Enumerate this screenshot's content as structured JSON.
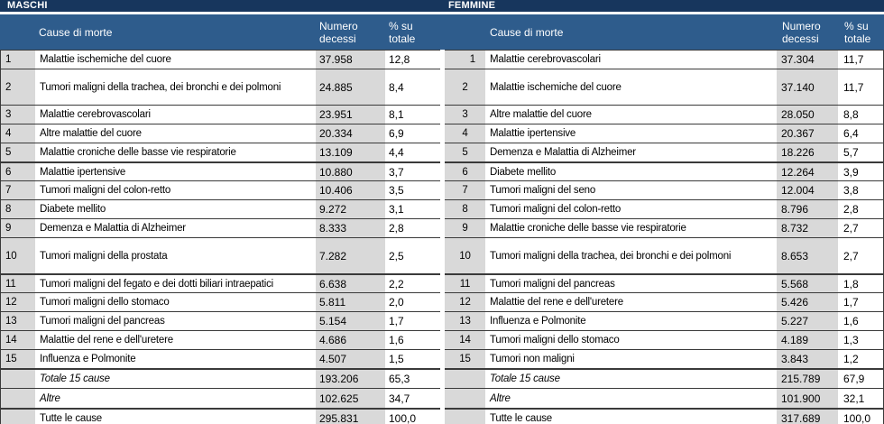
{
  "colors": {
    "title_bar": "#17365D",
    "header_bar": "#2E5C8C",
    "shaded_column": "#D9D9D9",
    "grid_line": "#3a3a3a"
  },
  "tables": [
    {
      "title": "MASCHI",
      "headers": {
        "cause": "Cause di morte",
        "count": "Numero decessi",
        "pct": "% su totale"
      },
      "rows": [
        {
          "rank": "1",
          "cause": "Malattie ischemiche del cuore",
          "count": "37.958",
          "pct": "12,8"
        },
        {
          "rank": "2",
          "cause": "Tumori maligni della trachea, dei bronchi e dei polmoni",
          "count": "24.885",
          "pct": "8,4",
          "tall": true
        },
        {
          "rank": "3",
          "cause": "Malattie cerebrovascolari",
          "count": "23.951",
          "pct": "8,1"
        },
        {
          "rank": "4",
          "cause": "Altre malattie del cuore",
          "count": "20.334",
          "pct": "6,9"
        },
        {
          "rank": "5",
          "cause": "Malattie croniche delle basse vie respiratorie",
          "count": "13.109",
          "pct": "4,4"
        },
        {
          "rank": "6",
          "cause": "Malattie ipertensive",
          "count": "10.880",
          "pct": "3,7",
          "group_start": true
        },
        {
          "rank": "7",
          "cause": "Tumori maligni del colon-retto",
          "count": "10.406",
          "pct": "3,5"
        },
        {
          "rank": "8",
          "cause": "Diabete mellito",
          "count": "9.272",
          "pct": "3,1"
        },
        {
          "rank": "9",
          "cause": "Demenza e Malattia di Alzheimer",
          "count": "8.333",
          "pct": "2,8"
        },
        {
          "rank": "10",
          "cause": "Tumori maligni della prostata",
          "count": "7.282",
          "pct": "2,5",
          "tall": true
        },
        {
          "rank": "11",
          "cause": "Tumori maligni del fegato e dei dotti biliari intraepatici",
          "count": "6.638",
          "pct": "2,2",
          "group_start": true
        },
        {
          "rank": "12",
          "cause": "Tumori maligni dello stomaco",
          "count": "5.811",
          "pct": "2,0"
        },
        {
          "rank": "13",
          "cause": "Tumori maligni del pancreas",
          "count": "5.154",
          "pct": "1,7"
        },
        {
          "rank": "14",
          "cause": "Malattie del rene e dell'uretere",
          "count": "4.686",
          "pct": "1,6"
        },
        {
          "rank": "15",
          "cause": "Influenza e Polmonite",
          "count": "4.507",
          "pct": "1,5"
        },
        {
          "rank": "",
          "cause": "Totale 15 cause",
          "count": "193.206",
          "pct": "65,3",
          "total": true,
          "italic": true,
          "group_start": true
        },
        {
          "rank": "",
          "cause": "Altre",
          "count": "102.625",
          "pct": "34,7",
          "total": true,
          "italic": true
        },
        {
          "rank": "",
          "cause": "Tutte le cause",
          "count": "295.831",
          "pct": "100,0",
          "total": true,
          "group_start": true
        }
      ]
    },
    {
      "title": "FEMMINE",
      "headers": {
        "cause": "Cause di morte",
        "count": "Numero decessi",
        "pct": "% su totale"
      },
      "rows": [
        {
          "rank": "1",
          "cause": "Malattie cerebrovascolari",
          "count": "37.304",
          "pct": "11,7"
        },
        {
          "rank": "2",
          "cause": "Malattie ischemiche del cuore",
          "count": "37.140",
          "pct": "11,7",
          "tall": true
        },
        {
          "rank": "3",
          "cause": "Altre malattie del cuore",
          "count": "28.050",
          "pct": "8,8"
        },
        {
          "rank": "4",
          "cause": "Malattie ipertensive",
          "count": "20.367",
          "pct": "6,4"
        },
        {
          "rank": "5",
          "cause": "Demenza e Malattia di Alzheimer",
          "count": "18.226",
          "pct": "5,7"
        },
        {
          "rank": "6",
          "cause": "Diabete mellito",
          "count": "12.264",
          "pct": "3,9",
          "group_start": true
        },
        {
          "rank": "7",
          "cause": "Tumori maligni del seno",
          "count": "12.004",
          "pct": "3,8"
        },
        {
          "rank": "8",
          "cause": "Tumori maligni del colon-retto",
          "count": "8.796",
          "pct": "2,8"
        },
        {
          "rank": "9",
          "cause": "Malattie croniche delle basse vie respiratorie",
          "count": "8.732",
          "pct": "2,7"
        },
        {
          "rank": "10",
          "cause": "Tumori maligni della trachea, dei bronchi e dei polmoni",
          "count": "8.653",
          "pct": "2,7",
          "tall": true
        },
        {
          "rank": "11",
          "cause": "Tumori maligni del pancreas",
          "count": "5.568",
          "pct": "1,8",
          "group_start": true
        },
        {
          "rank": "12",
          "cause": "Malattie del rene e dell'uretere",
          "count": "5.426",
          "pct": "1,7"
        },
        {
          "rank": "13",
          "cause": "Influenza e Polmonite",
          "count": "5.227",
          "pct": "1,6"
        },
        {
          "rank": "14",
          "cause": "Tumori maligni dello stomaco",
          "count": "4.189",
          "pct": "1,3"
        },
        {
          "rank": "15",
          "cause": "Tumori non maligni",
          "count": "3.843",
          "pct": "1,2"
        },
        {
          "rank": "",
          "cause": "Totale 15 cause",
          "count": "215.789",
          "pct": "67,9",
          "total": true,
          "italic": true,
          "group_start": true
        },
        {
          "rank": "",
          "cause": "Altre",
          "count": "101.900",
          "pct": "32,1",
          "total": true,
          "italic": true
        },
        {
          "rank": "",
          "cause": "Tutte le cause",
          "count": "317.689",
          "pct": "100,0",
          "total": true,
          "group_start": true
        }
      ]
    }
  ]
}
